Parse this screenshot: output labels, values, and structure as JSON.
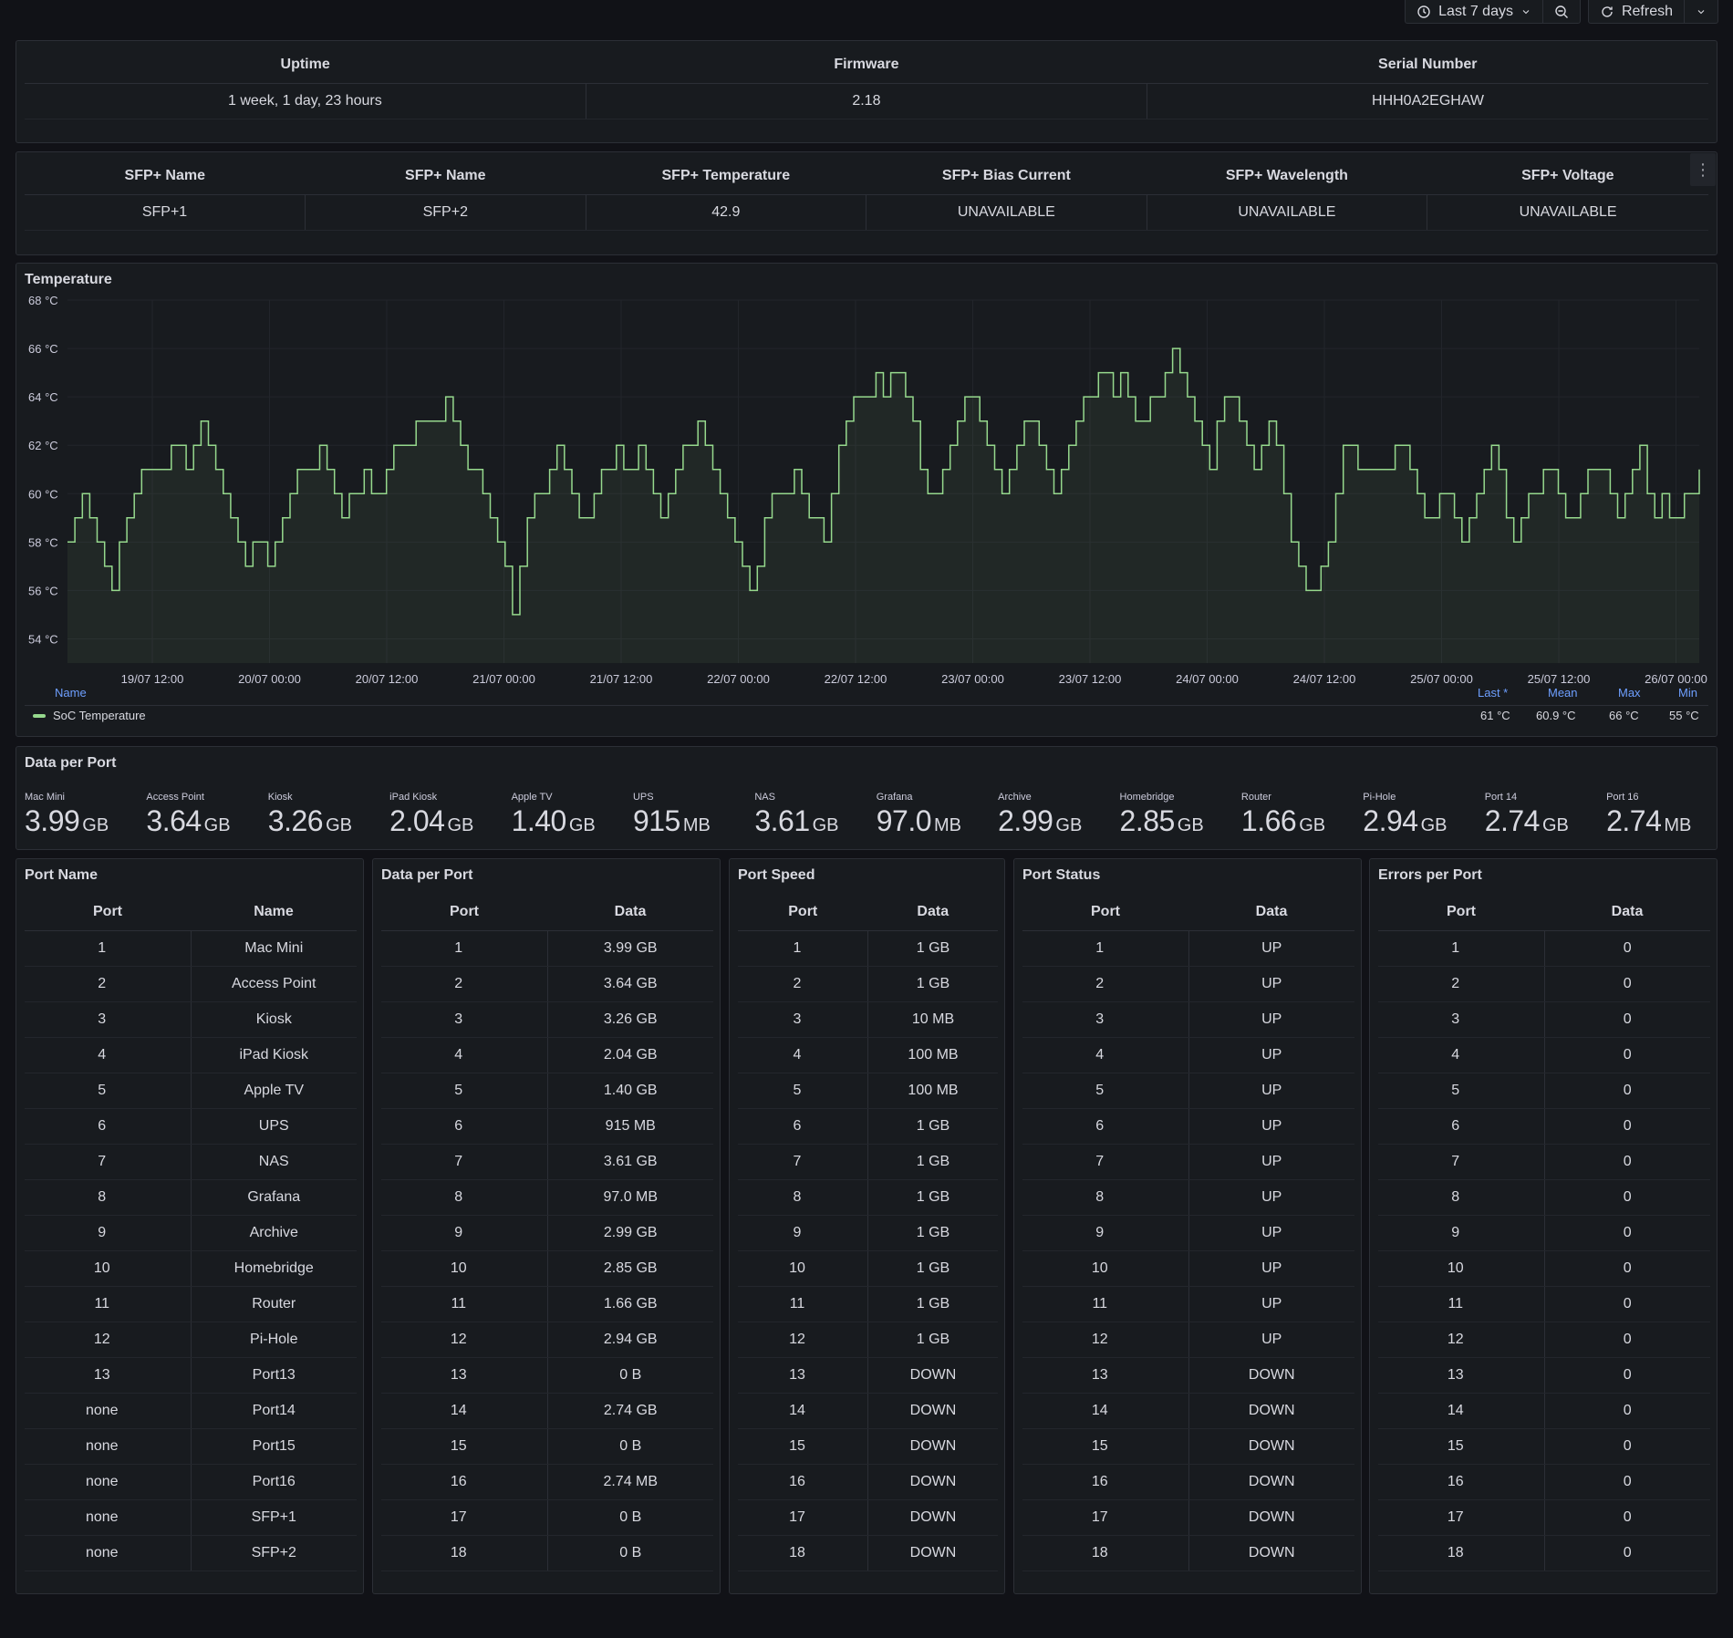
{
  "toolbar": {
    "time_range": "Last 7 days",
    "refresh": "Refresh"
  },
  "info": {
    "headers": [
      "Uptime",
      "Firmware",
      "Serial Number"
    ],
    "values": [
      "1 week, 1 day, 23 hours",
      "2.18",
      "HHH0A2EGHAW"
    ]
  },
  "sfp": {
    "headers": [
      "SFP+ Name",
      "SFP+ Name",
      "SFP+ Temperature",
      "SFP+ Bias Current",
      "SFP+ Wavelength",
      "SFP+ Voltage"
    ],
    "values": [
      "SFP+1",
      "SFP+2",
      "42.9",
      "UNAVAILABLE",
      "UNAVAILABLE",
      "UNAVAILABLE"
    ]
  },
  "temperature": {
    "title": "Temperature",
    "legend": {
      "name_header": "Name",
      "headers": [
        "Last *",
        "Mean",
        "Max",
        "Min"
      ],
      "series_name": "SoC Temperature",
      "values": [
        "61 °C",
        "60.9 °C",
        "66 °C",
        "55 °C"
      ]
    }
  },
  "chart_data": {
    "type": "line",
    "title": "Temperature",
    "ylabel": "°C",
    "ylim": [
      53,
      68
    ],
    "y_ticks": [
      "54 °C",
      "56 °C",
      "58 °C",
      "60 °C",
      "62 °C",
      "64 °C",
      "66 °C",
      "68 °C"
    ],
    "x_ticks": [
      "19/07 12:00",
      "20/07 00:00",
      "20/07 12:00",
      "21/07 00:00",
      "21/07 12:00",
      "22/07 00:00",
      "22/07 12:00",
      "23/07 00:00",
      "23/07 12:00",
      "24/07 00:00",
      "24/07 12:00",
      "25/07 00:00",
      "25/07 12:00",
      "26/07 00:00"
    ],
    "series": [
      {
        "name": "SoC Temperature",
        "color": "#96d98d",
        "values": [
          58,
          59,
          60,
          59,
          58,
          57,
          56,
          58,
          59,
          60,
          61,
          61,
          61,
          61,
          62,
          62,
          61,
          62,
          63,
          62,
          61,
          60,
          59,
          58,
          57,
          58,
          58,
          57,
          58,
          59,
          60,
          61,
          61,
          61,
          62,
          61,
          60,
          59,
          60,
          60,
          61,
          60,
          60,
          61,
          62,
          62,
          62,
          63,
          63,
          63,
          63,
          64,
          63,
          62,
          61,
          61,
          60,
          59,
          58,
          57,
          55,
          57,
          59,
          60,
          60,
          61,
          62,
          61,
          60,
          59,
          59,
          60,
          61,
          61,
          62,
          61,
          61,
          62,
          61,
          60,
          59,
          60,
          61,
          62,
          62,
          63,
          62,
          61,
          60,
          59,
          58,
          57,
          56,
          57,
          59,
          60,
          60,
          60,
          61,
          60,
          59,
          59,
          58,
          60,
          62,
          63,
          64,
          64,
          64,
          65,
          64,
          65,
          65,
          64,
          63,
          61,
          60,
          60,
          61,
          62,
          63,
          64,
          64,
          63,
          62,
          61,
          60,
          61,
          62,
          63,
          63,
          62,
          61,
          60,
          61,
          62,
          63,
          64,
          64,
          65,
          65,
          64,
          65,
          64,
          63,
          63,
          64,
          64,
          65,
          66,
          65,
          64,
          63,
          62,
          61,
          63,
          64,
          64,
          63,
          62,
          61,
          62,
          63,
          62,
          60,
          58,
          57,
          56,
          56,
          57,
          58,
          60,
          62,
          62,
          61,
          61,
          61,
          61,
          61,
          62,
          62,
          61,
          60,
          59,
          59,
          60,
          60,
          59,
          58,
          59,
          60,
          61,
          62,
          61,
          59,
          58,
          59,
          60,
          60,
          61,
          61,
          60,
          59,
          59,
          60,
          61,
          61,
          61,
          60,
          59,
          60,
          61,
          62,
          60,
          59,
          60,
          59,
          59,
          60,
          60,
          61
        ]
      }
    ]
  },
  "data_per_port_stats": {
    "title": "Data per Port",
    "items": [
      {
        "label": "Mac Mini",
        "value": "3.99",
        "unit": "GB"
      },
      {
        "label": "Access Point",
        "value": "3.64",
        "unit": "GB"
      },
      {
        "label": "Kiosk",
        "value": "3.26",
        "unit": "GB"
      },
      {
        "label": "iPad Kiosk",
        "value": "2.04",
        "unit": "GB"
      },
      {
        "label": "Apple TV",
        "value": "1.40",
        "unit": "GB"
      },
      {
        "label": "UPS",
        "value": "915",
        "unit": "MB"
      },
      {
        "label": "NAS",
        "value": "3.61",
        "unit": "GB"
      },
      {
        "label": "Grafana",
        "value": "97.0",
        "unit": "MB"
      },
      {
        "label": "Archive",
        "value": "2.99",
        "unit": "GB"
      },
      {
        "label": "Homebridge",
        "value": "2.85",
        "unit": "GB"
      },
      {
        "label": "Router",
        "value": "1.66",
        "unit": "GB"
      },
      {
        "label": "Pi-Hole",
        "value": "2.94",
        "unit": "GB"
      },
      {
        "label": "Port 14",
        "value": "2.74",
        "unit": "GB"
      },
      {
        "label": "Port 16",
        "value": "2.74",
        "unit": "MB"
      }
    ]
  },
  "tables": [
    {
      "title": "Port Name",
      "columns": [
        "Port",
        "Name"
      ],
      "rows": [
        [
          "1",
          "Mac Mini"
        ],
        [
          "2",
          "Access Point"
        ],
        [
          "3",
          "Kiosk"
        ],
        [
          "4",
          "iPad Kiosk"
        ],
        [
          "5",
          "Apple TV"
        ],
        [
          "6",
          "UPS"
        ],
        [
          "7",
          "NAS"
        ],
        [
          "8",
          "Grafana"
        ],
        [
          "9",
          "Archive"
        ],
        [
          "10",
          "Homebridge"
        ],
        [
          "11",
          "Router"
        ],
        [
          "12",
          "Pi-Hole"
        ],
        [
          "13",
          "Port13"
        ],
        [
          "none",
          "Port14"
        ],
        [
          "none",
          "Port15"
        ],
        [
          "none",
          "Port16"
        ],
        [
          "none",
          "SFP+1"
        ],
        [
          "none",
          "SFP+2"
        ]
      ]
    },
    {
      "title": "Data per Port",
      "columns": [
        "Port",
        "Data"
      ],
      "rows": [
        [
          "1",
          "3.99 GB"
        ],
        [
          "2",
          "3.64 GB"
        ],
        [
          "3",
          "3.26 GB"
        ],
        [
          "4",
          "2.04 GB"
        ],
        [
          "5",
          "1.40 GB"
        ],
        [
          "6",
          "915 MB"
        ],
        [
          "7",
          "3.61 GB"
        ],
        [
          "8",
          "97.0 MB"
        ],
        [
          "9",
          "2.99 GB"
        ],
        [
          "10",
          "2.85 GB"
        ],
        [
          "11",
          "1.66 GB"
        ],
        [
          "12",
          "2.94 GB"
        ],
        [
          "13",
          "0 B"
        ],
        [
          "14",
          "2.74 GB"
        ],
        [
          "15",
          "0 B"
        ],
        [
          "16",
          "2.74 MB"
        ],
        [
          "17",
          "0 B"
        ],
        [
          "18",
          "0 B"
        ]
      ]
    },
    {
      "title": "Port Speed",
      "columns": [
        "Port",
        "Data"
      ],
      "rows": [
        [
          "1",
          "1 GB"
        ],
        [
          "2",
          "1 GB"
        ],
        [
          "3",
          "10 MB"
        ],
        [
          "4",
          "100 MB"
        ],
        [
          "5",
          "100 MB"
        ],
        [
          "6",
          "1 GB"
        ],
        [
          "7",
          "1 GB"
        ],
        [
          "8",
          "1 GB"
        ],
        [
          "9",
          "1 GB"
        ],
        [
          "10",
          "1 GB"
        ],
        [
          "11",
          "1 GB"
        ],
        [
          "12",
          "1 GB"
        ],
        [
          "13",
          "DOWN"
        ],
        [
          "14",
          "DOWN"
        ],
        [
          "15",
          "DOWN"
        ],
        [
          "16",
          "DOWN"
        ],
        [
          "17",
          "DOWN"
        ],
        [
          "18",
          "DOWN"
        ]
      ]
    },
    {
      "title": "Port Status",
      "columns": [
        "Port",
        "Data"
      ],
      "rows": [
        [
          "1",
          "UP"
        ],
        [
          "2",
          "UP"
        ],
        [
          "3",
          "UP"
        ],
        [
          "4",
          "UP"
        ],
        [
          "5",
          "UP"
        ],
        [
          "6",
          "UP"
        ],
        [
          "7",
          "UP"
        ],
        [
          "8",
          "UP"
        ],
        [
          "9",
          "UP"
        ],
        [
          "10",
          "UP"
        ],
        [
          "11",
          "UP"
        ],
        [
          "12",
          "UP"
        ],
        [
          "13",
          "DOWN"
        ],
        [
          "14",
          "DOWN"
        ],
        [
          "15",
          "DOWN"
        ],
        [
          "16",
          "DOWN"
        ],
        [
          "17",
          "DOWN"
        ],
        [
          "18",
          "DOWN"
        ]
      ]
    },
    {
      "title": "Errors per Port",
      "columns": [
        "Port",
        "Data"
      ],
      "rows": [
        [
          "1",
          "0"
        ],
        [
          "2",
          "0"
        ],
        [
          "3",
          "0"
        ],
        [
          "4",
          "0"
        ],
        [
          "5",
          "0"
        ],
        [
          "6",
          "0"
        ],
        [
          "7",
          "0"
        ],
        [
          "8",
          "0"
        ],
        [
          "9",
          "0"
        ],
        [
          "10",
          "0"
        ],
        [
          "11",
          "0"
        ],
        [
          "12",
          "0"
        ],
        [
          "13",
          "0"
        ],
        [
          "14",
          "0"
        ],
        [
          "15",
          "0"
        ],
        [
          "16",
          "0"
        ],
        [
          "17",
          "0"
        ],
        [
          "18",
          "0"
        ]
      ]
    }
  ]
}
